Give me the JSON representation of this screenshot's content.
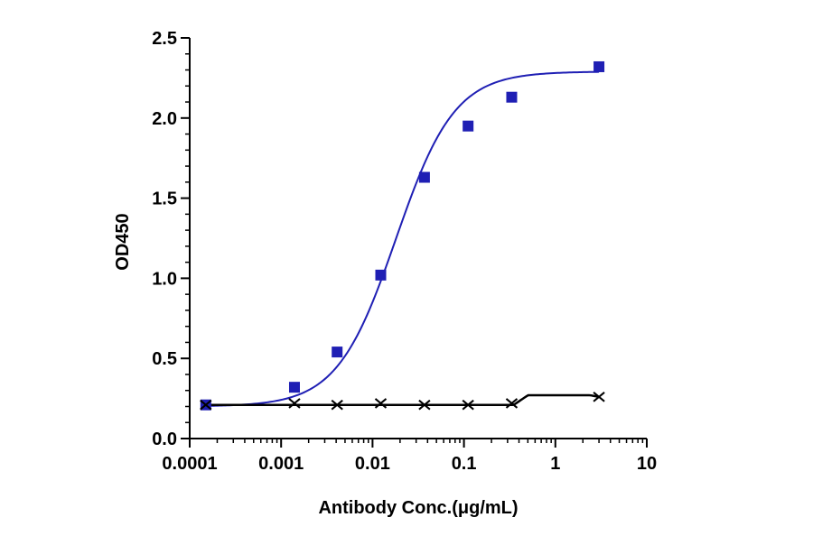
{
  "chart_data": {
    "type": "scatter",
    "xlabel": "Antibody Conc.(μg/mL)",
    "ylabel": "OD450",
    "xscale": "log",
    "xlim": [
      0.0001,
      10
    ],
    "ylim": [
      0,
      2.5
    ],
    "xticks": [
      {
        "value": 0.0001,
        "label": "0.0001"
      },
      {
        "value": 0.001,
        "label": "0.001"
      },
      {
        "value": 0.01,
        "label": "0.01"
      },
      {
        "value": 0.1,
        "label": "0.1"
      },
      {
        "value": 1,
        "label": "1"
      },
      {
        "value": 10,
        "label": "10"
      }
    ],
    "yticks": [
      {
        "value": 0,
        "label": "0.0"
      },
      {
        "value": 0.5,
        "label": "0.5"
      },
      {
        "value": 1.0,
        "label": "1.0"
      },
      {
        "value": 1.5,
        "label": "1.5"
      },
      {
        "value": 2.0,
        "label": "2.0"
      },
      {
        "value": 2.5,
        "label": "2.5"
      }
    ],
    "grid": false,
    "legend": "none",
    "series": [
      {
        "marker": "square",
        "color": "#1f1fb4",
        "x": [
          0.00015,
          0.0014,
          0.0041,
          0.0123,
          0.037,
          0.111,
          0.333,
          3.0
        ],
        "y": [
          0.21,
          0.32,
          0.54,
          1.02,
          1.63,
          1.95,
          2.13,
          2.32
        ],
        "fit": {
          "model": "4PL",
          "bottom": 0.2,
          "top": 2.29,
          "ec50": 0.018,
          "hill": 1.35
        }
      },
      {
        "marker": "x",
        "color": "#000000",
        "x": [
          0.00015,
          0.0014,
          0.0041,
          0.0123,
          0.037,
          0.111,
          0.333,
          3.0
        ],
        "y": [
          0.21,
          0.22,
          0.21,
          0.22,
          0.21,
          0.21,
          0.22,
          0.26
        ],
        "fit": {
          "model": "baseline",
          "value": 0.21,
          "end": 0.25
        }
      }
    ]
  }
}
